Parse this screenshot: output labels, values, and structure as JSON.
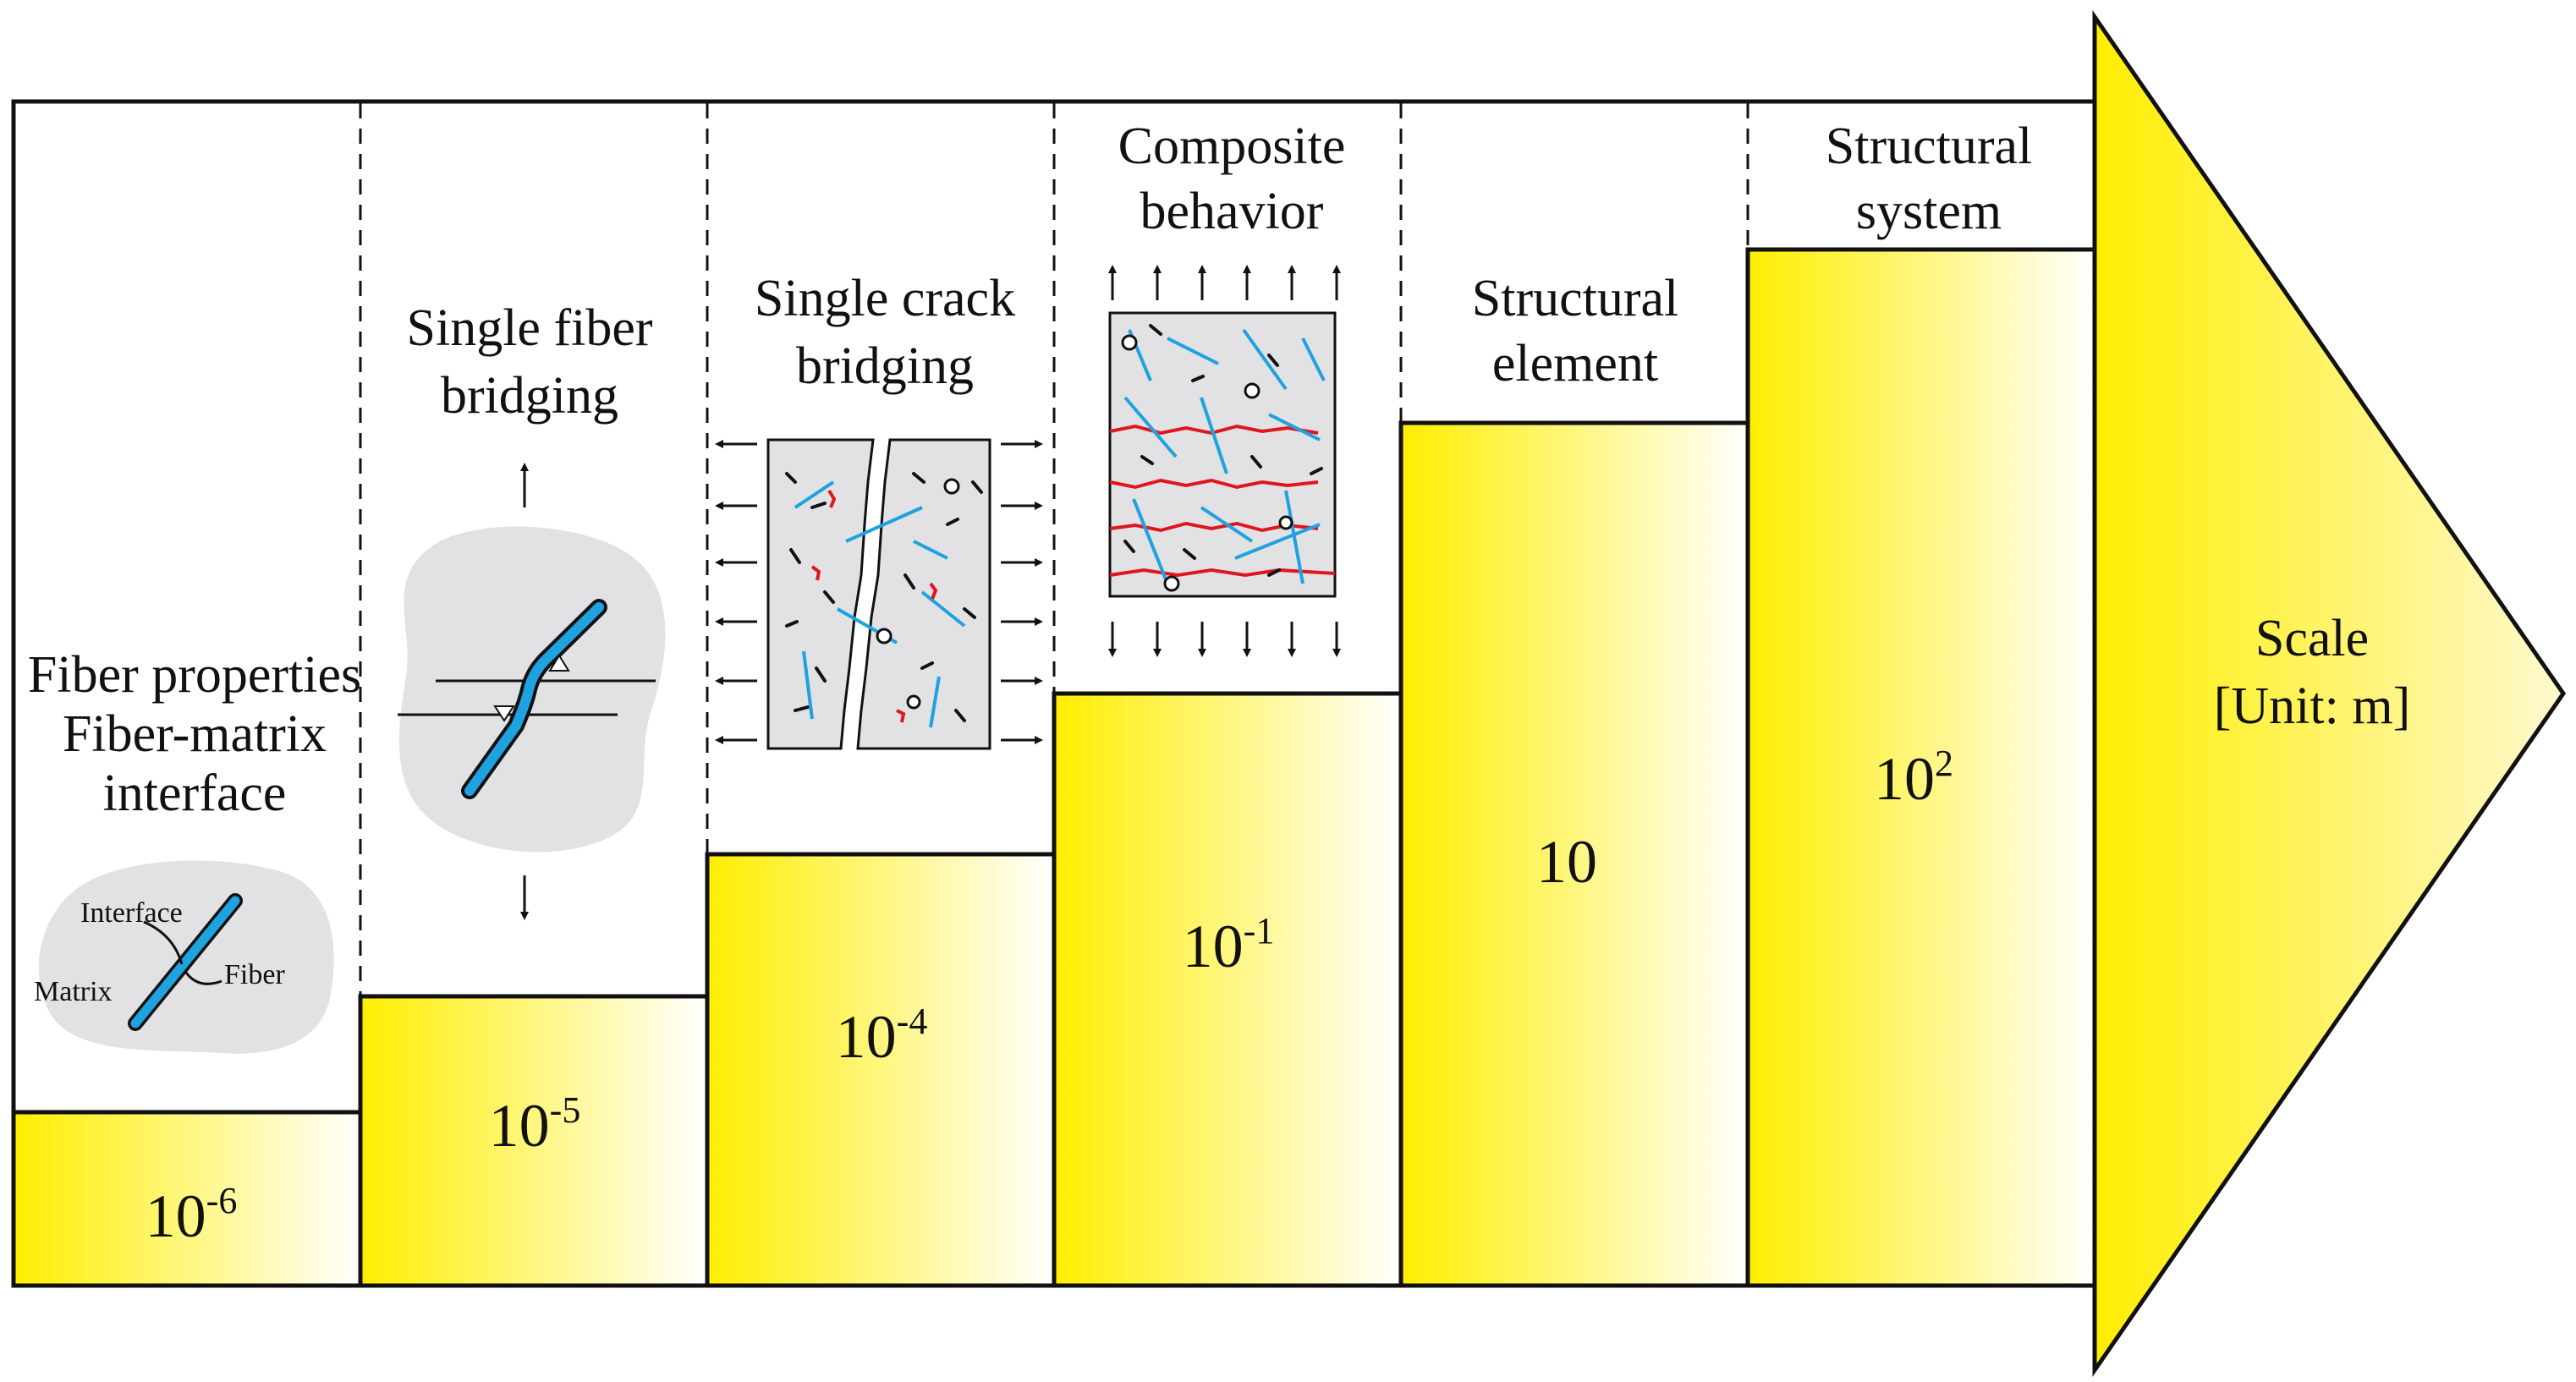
{
  "stages": [
    {
      "id": "fiber-properties",
      "label_lines": [
        "Fiber properties",
        "Fiber-matrix",
        "interface"
      ],
      "scale": {
        "base": "10",
        "exp": "-6"
      },
      "inset": {
        "interface": "Interface",
        "matrix": "Matrix",
        "fiber": "Fiber"
      }
    },
    {
      "id": "single-fiber-bridging",
      "label_lines": [
        "Single fiber",
        "bridging"
      ],
      "scale": {
        "base": "10",
        "exp": "-5"
      }
    },
    {
      "id": "single-crack-bridging",
      "label_lines": [
        "Single crack",
        "bridging"
      ],
      "scale": {
        "base": "10",
        "exp": "-4"
      }
    },
    {
      "id": "composite-behavior",
      "label_lines": [
        "Composite",
        "behavior"
      ],
      "scale": {
        "base": "10",
        "exp": "-1"
      }
    },
    {
      "id": "structural-element",
      "label_lines": [
        "Structural",
        "element"
      ],
      "scale": {
        "base": "10",
        "exp": ""
      }
    },
    {
      "id": "structural-system",
      "label_lines": [
        "Structural",
        "system"
      ],
      "scale": {
        "base": "10",
        "exp": "2"
      }
    }
  ],
  "arrow": {
    "line1": "Scale",
    "line2": "[Unit: m]"
  },
  "colors": {
    "step_fill": "#ffee00",
    "step_fade": "#ffffff",
    "matrix_gray": "#e2e2e4",
    "fiber_blue": "#1fa2e0",
    "crack_red": "#e0161e",
    "outline": "#111111"
  }
}
